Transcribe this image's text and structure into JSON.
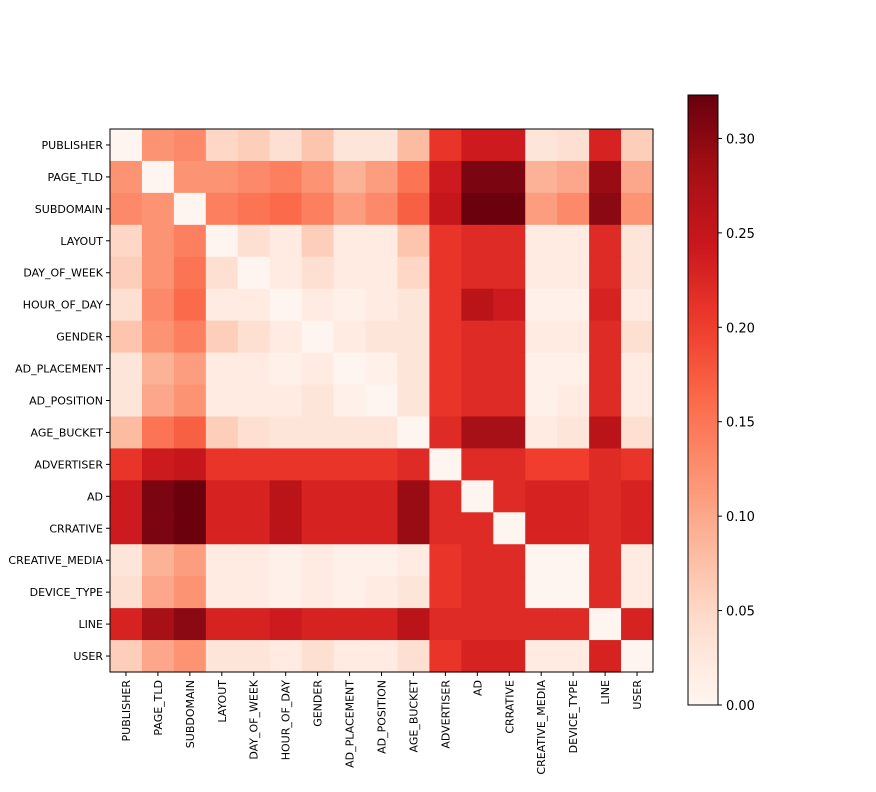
{
  "chart_data": {
    "type": "heatmap",
    "title": "",
    "xlabel": "",
    "ylabel": "",
    "labels": [
      "PUBLISHER",
      "PAGE_TLD",
      "SUBDOMAIN",
      "LAYOUT",
      "DAY_OF_WEEK",
      "HOUR_OF_DAY",
      "GENDER",
      "AD_PLACEMENT",
      "AD_POSITION",
      "AGE_BUCKET",
      "ADVERTISER",
      "AD",
      "CRRATIVE",
      "CREATIVE_MEDIA",
      "DEVICE_TYPE",
      "LINE",
      "USER"
    ],
    "colormap": "Reds",
    "vmin": 0.0,
    "vmax": 0.323,
    "colorbar_ticks": [
      0.0,
      0.05,
      0.1,
      0.15,
      0.2,
      0.25,
      0.3
    ],
    "colorbar_tick_labels": [
      "0.00",
      "0.05",
      "0.10",
      "0.15",
      "0.20",
      "0.25",
      "0.30"
    ],
    "values": [
      [
        0.0,
        0.12,
        0.13,
        0.05,
        0.06,
        0.04,
        0.07,
        0.03,
        0.03,
        0.08,
        0.21,
        0.24,
        0.24,
        0.03,
        0.04,
        0.23,
        0.06
      ],
      [
        0.12,
        0.0,
        0.12,
        0.12,
        0.13,
        0.14,
        0.12,
        0.09,
        0.11,
        0.15,
        0.24,
        0.31,
        0.31,
        0.09,
        0.1,
        0.29,
        0.1
      ],
      [
        0.13,
        0.12,
        0.0,
        0.14,
        0.15,
        0.16,
        0.14,
        0.11,
        0.13,
        0.17,
        0.25,
        0.32,
        0.32,
        0.11,
        0.13,
        0.3,
        0.12
      ],
      [
        0.05,
        0.12,
        0.14,
        0.0,
        0.04,
        0.02,
        0.06,
        0.02,
        0.02,
        0.07,
        0.21,
        0.22,
        0.22,
        0.02,
        0.02,
        0.22,
        0.03
      ],
      [
        0.06,
        0.12,
        0.15,
        0.04,
        0.0,
        0.02,
        0.04,
        0.02,
        0.02,
        0.05,
        0.21,
        0.22,
        0.22,
        0.02,
        0.02,
        0.22,
        0.03
      ],
      [
        0.04,
        0.13,
        0.16,
        0.02,
        0.02,
        0.0,
        0.02,
        0.01,
        0.02,
        0.03,
        0.21,
        0.26,
        0.24,
        0.01,
        0.01,
        0.23,
        0.02
      ],
      [
        0.07,
        0.12,
        0.14,
        0.06,
        0.04,
        0.02,
        0.0,
        0.02,
        0.03,
        0.03,
        0.21,
        0.22,
        0.22,
        0.02,
        0.02,
        0.22,
        0.04
      ],
      [
        0.03,
        0.09,
        0.11,
        0.02,
        0.02,
        0.01,
        0.02,
        0.0,
        0.01,
        0.03,
        0.21,
        0.22,
        0.22,
        0.01,
        0.01,
        0.22,
        0.02
      ],
      [
        0.03,
        0.1,
        0.12,
        0.02,
        0.02,
        0.02,
        0.03,
        0.01,
        0.0,
        0.03,
        0.21,
        0.22,
        0.22,
        0.01,
        0.02,
        0.22,
        0.02
      ],
      [
        0.08,
        0.15,
        0.17,
        0.06,
        0.04,
        0.03,
        0.03,
        0.03,
        0.03,
        0.0,
        0.22,
        0.28,
        0.28,
        0.02,
        0.03,
        0.26,
        0.04
      ],
      [
        0.21,
        0.24,
        0.25,
        0.21,
        0.21,
        0.21,
        0.21,
        0.21,
        0.21,
        0.22,
        0.0,
        0.22,
        0.22,
        0.2,
        0.2,
        0.22,
        0.21
      ],
      [
        0.24,
        0.31,
        0.32,
        0.23,
        0.23,
        0.26,
        0.23,
        0.23,
        0.23,
        0.29,
        0.22,
        0.0,
        0.22,
        0.23,
        0.23,
        0.22,
        0.23
      ],
      [
        0.24,
        0.31,
        0.32,
        0.23,
        0.23,
        0.26,
        0.23,
        0.23,
        0.23,
        0.29,
        0.22,
        0.22,
        0.0,
        0.23,
        0.23,
        0.22,
        0.23
      ],
      [
        0.03,
        0.09,
        0.11,
        0.02,
        0.02,
        0.01,
        0.02,
        0.01,
        0.01,
        0.02,
        0.21,
        0.22,
        0.22,
        0.0,
        0.0,
        0.22,
        0.02
      ],
      [
        0.04,
        0.1,
        0.12,
        0.02,
        0.02,
        0.01,
        0.02,
        0.01,
        0.02,
        0.03,
        0.21,
        0.22,
        0.22,
        0.0,
        0.0,
        0.22,
        0.02
      ],
      [
        0.23,
        0.28,
        0.3,
        0.23,
        0.23,
        0.24,
        0.23,
        0.23,
        0.23,
        0.26,
        0.22,
        0.22,
        0.22,
        0.22,
        0.22,
        0.0,
        0.23
      ],
      [
        0.06,
        0.1,
        0.12,
        0.03,
        0.03,
        0.02,
        0.04,
        0.02,
        0.02,
        0.04,
        0.21,
        0.23,
        0.23,
        0.02,
        0.02,
        0.23,
        0.0
      ]
    ]
  }
}
